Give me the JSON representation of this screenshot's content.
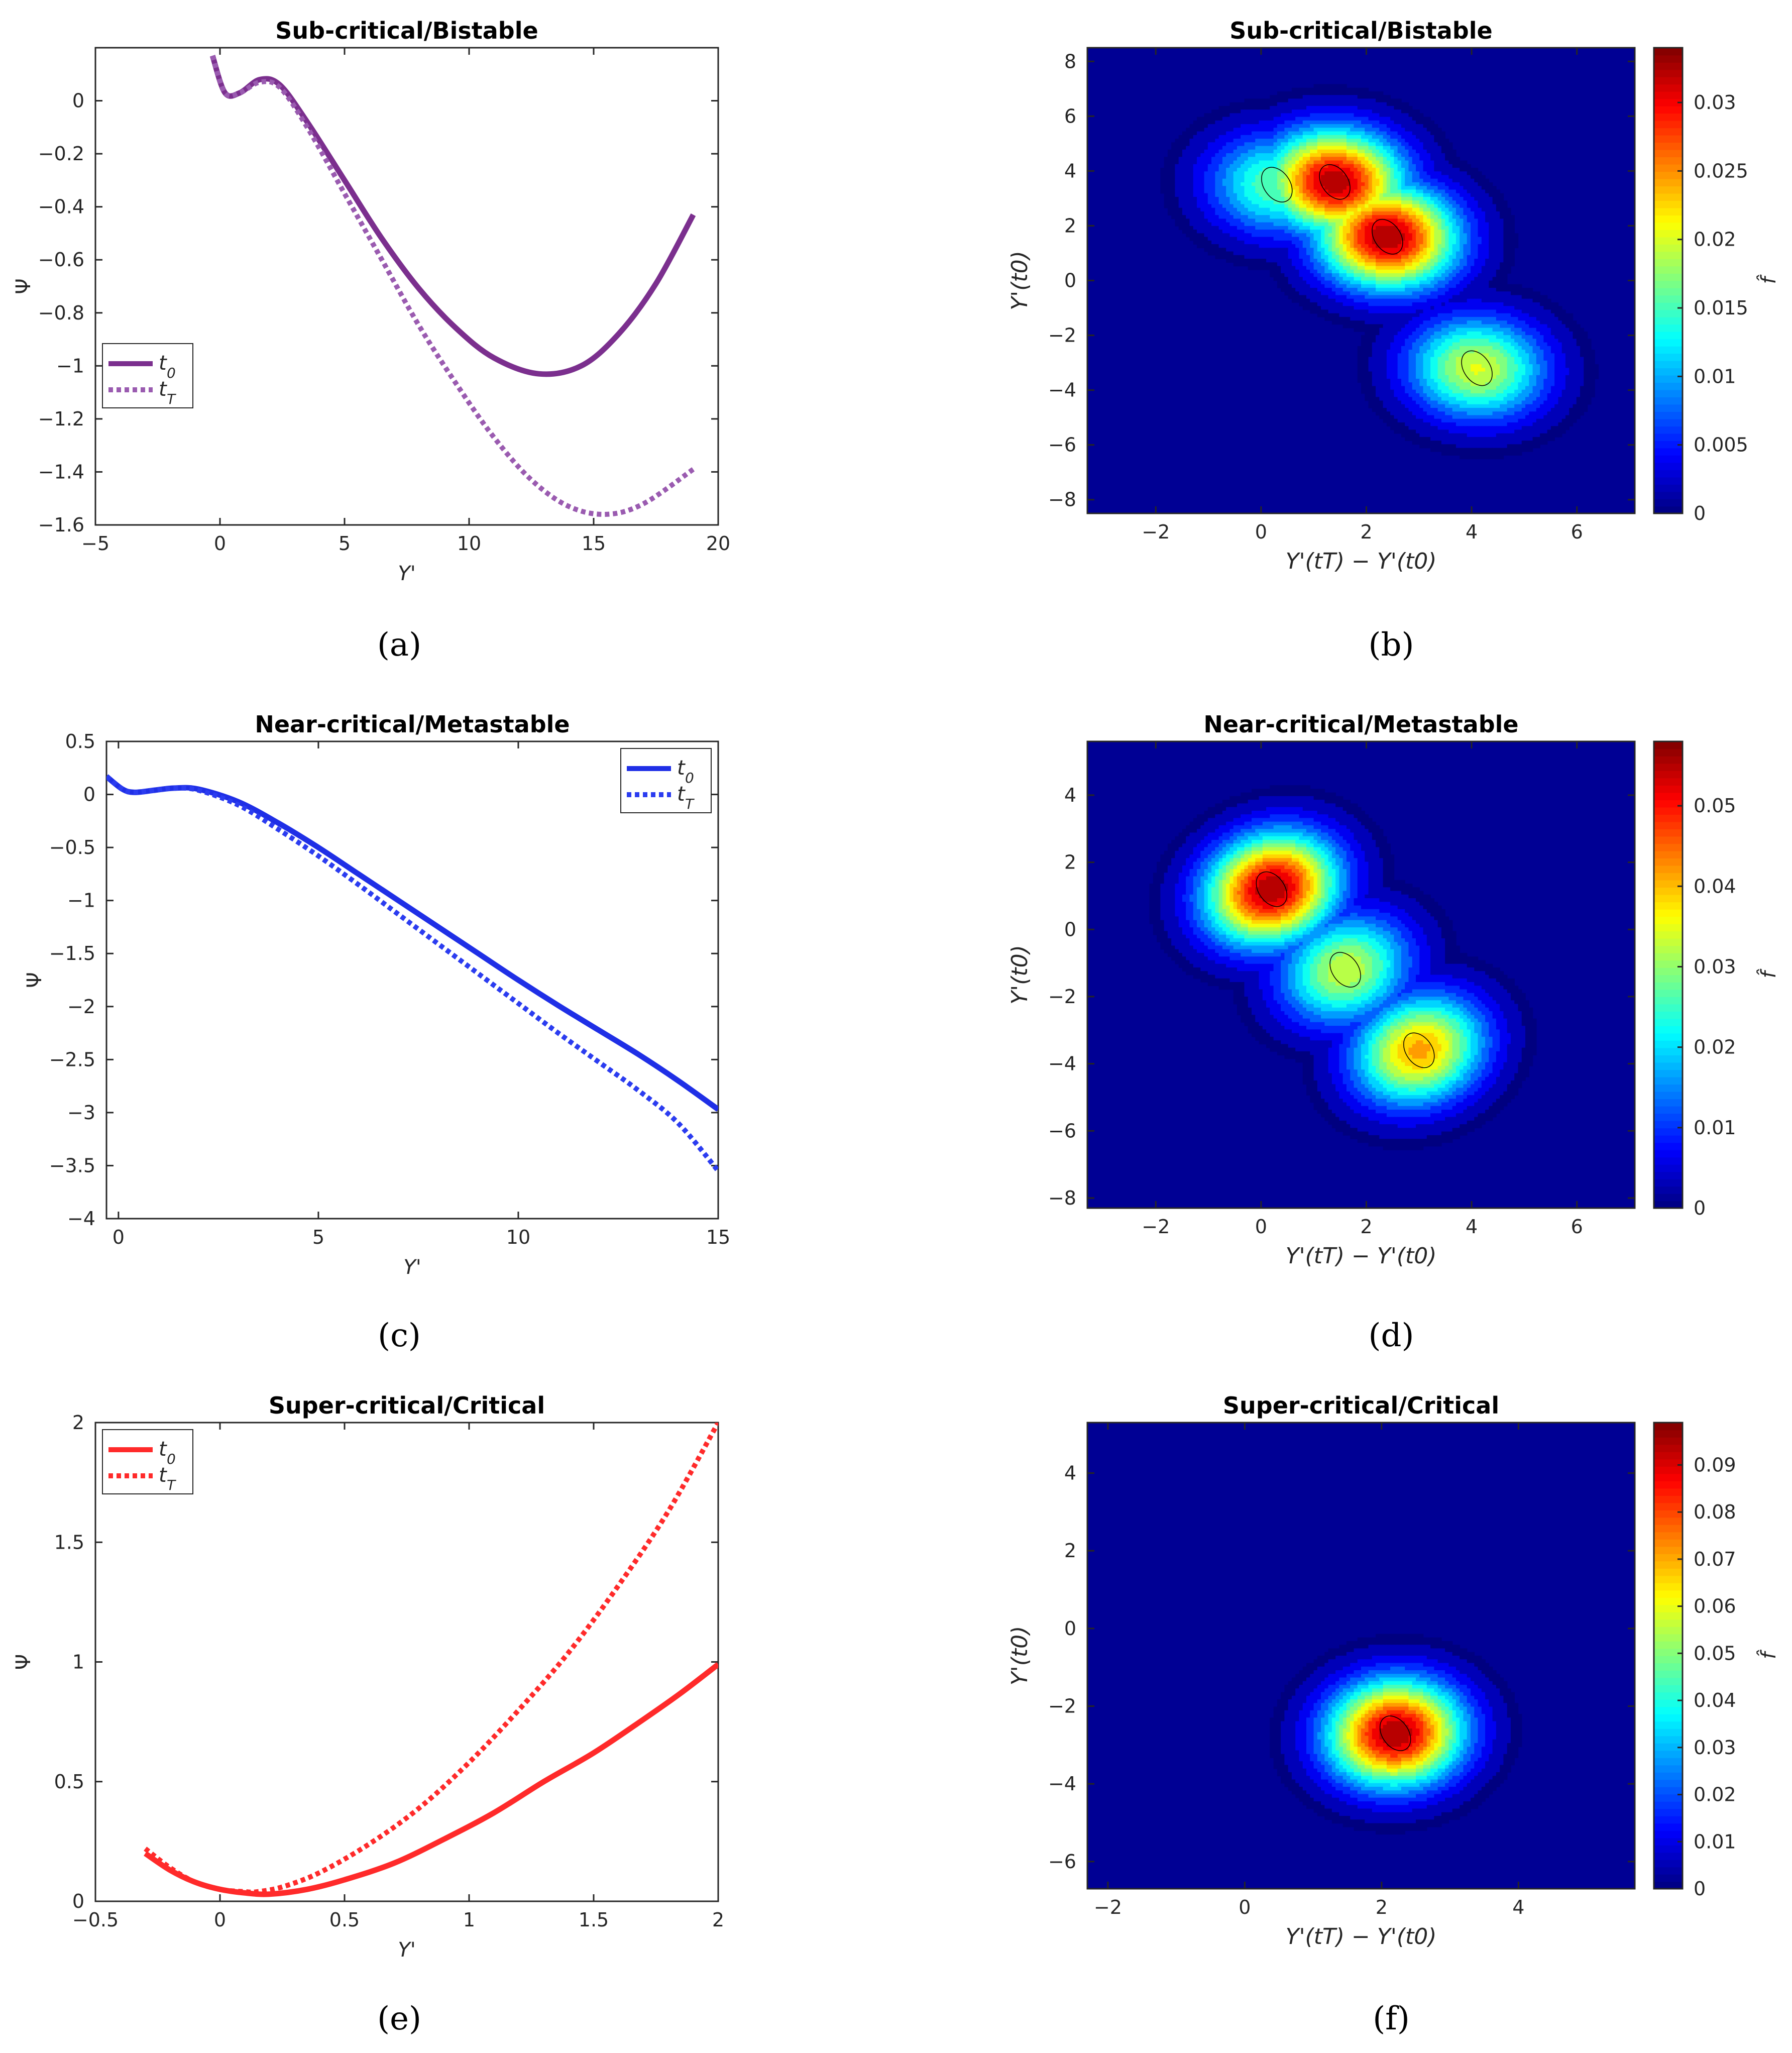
{
  "chart_data": [
    {
      "panel": "a",
      "type": "line",
      "title": "Sub-critical/Bistable",
      "xlabel": "Y'",
      "ylabel": "Ψ",
      "xlim": [
        -5,
        20
      ],
      "ylim": [
        -1.6,
        0.2
      ],
      "xticks": [
        -5,
        0,
        5,
        10,
        15,
        20
      ],
      "xtick_labels": [
        "−5",
        "0",
        "5",
        "10",
        "15",
        "20"
      ],
      "yticks": [
        0,
        -0.2,
        -0.4,
        -0.6,
        -0.8,
        -1,
        -1.2,
        -1.4,
        -1.6
      ],
      "ytick_labels": [
        "0",
        "−0.2",
        "−0.4",
        "−0.6",
        "−0.8",
        "−1",
        "−1.2",
        "−1.4",
        "−1.6"
      ],
      "legend": {
        "position": "middle-left",
        "entries": [
          {
            "base": "t",
            "sub": "0",
            "style": "solid"
          },
          {
            "base": "t",
            "sub": "T",
            "style": "dotted"
          }
        ]
      },
      "series": [
        {
          "name": "t0",
          "style": "solid",
          "color": "#7b2f8e",
          "x": [
            -0.3,
            0.2,
            0.8,
            1.6,
            2.4,
            3.5,
            5,
            6.5,
            8,
            9.5,
            11,
            12.8,
            14.5,
            16,
            17.5,
            19
          ],
          "y": [
            0.17,
            0.03,
            0.03,
            0.08,
            0.06,
            -0.08,
            -0.3,
            -0.52,
            -0.71,
            -0.86,
            -0.97,
            -1.03,
            -1.0,
            -0.88,
            -0.69,
            -0.43
          ]
        },
        {
          "name": "tT",
          "style": "dotted",
          "color": "#9a5bb0",
          "x": [
            -0.3,
            0.2,
            0.8,
            1.6,
            2.4,
            3.5,
            5,
            6.5,
            8,
            9.5,
            11,
            12.5,
            14,
            15.5,
            17,
            19
          ],
          "y": [
            0.17,
            0.03,
            0.03,
            0.07,
            0.05,
            -0.1,
            -0.35,
            -0.6,
            -0.85,
            -1.07,
            -1.27,
            -1.43,
            -1.53,
            -1.56,
            -1.52,
            -1.39
          ]
        }
      ]
    },
    {
      "panel": "b",
      "type": "heatmap",
      "title": "Sub-critical/Bistable",
      "xlabel": "Y'(tT) − Y'(t0)",
      "ylabel": "Y'(t0)",
      "colorbar_label": "f̂",
      "xlim": [
        -3.3,
        7.1
      ],
      "ylim": [
        -8.5,
        8.5
      ],
      "xticks": [
        -2,
        0,
        2,
        4,
        6
      ],
      "xtick_labels": [
        "−2",
        "0",
        "2",
        "4",
        "6"
      ],
      "yticks": [
        8,
        6,
        4,
        2,
        0,
        -2,
        -4,
        -6,
        -8
      ],
      "ytick_labels": [
        "8",
        "6",
        "4",
        "2",
        "0",
        "−2",
        "−4",
        "−6",
        "−8"
      ],
      "clim": [
        0,
        0.034
      ],
      "cticks": [
        0,
        0.005,
        0.01,
        0.015,
        0.02,
        0.025,
        0.03
      ],
      "ctick_labels": [
        "0",
        "0.005",
        "0.01",
        "0.015",
        "0.02",
        "0.025",
        "0.03"
      ],
      "peaks": [
        {
          "x": 1.4,
          "y": 3.6,
          "height": 0.0335
        },
        {
          "x": 2.4,
          "y": 1.6,
          "height": 0.034
        },
        {
          "x": 4.1,
          "y": -3.2,
          "height": 0.021
        },
        {
          "x": 0.3,
          "y": 3.5,
          "height": 0.017
        }
      ]
    },
    {
      "panel": "c",
      "type": "line",
      "title": "Near-critical/Metastable",
      "xlabel": "Y'",
      "ylabel": "Ψ",
      "xlim": [
        -0.3,
        15
      ],
      "ylim": [
        -4,
        0.5
      ],
      "xticks": [
        0,
        5,
        10,
        15
      ],
      "xtick_labels": [
        "0",
        "5",
        "10",
        "15"
      ],
      "yticks": [
        0.5,
        0,
        -0.5,
        -1,
        -1.5,
        -2,
        -2.5,
        -3,
        -3.5,
        -4
      ],
      "ytick_labels": [
        "0.5",
        "0",
        "−0.5",
        "−1",
        "−1.5",
        "−2",
        "−2.5",
        "−3",
        "−3.5",
        "−4"
      ],
      "legend": {
        "position": "top-right",
        "entries": [
          {
            "base": "t",
            "sub": "0",
            "style": "solid"
          },
          {
            "base": "t",
            "sub": "T",
            "style": "dotted"
          }
        ]
      },
      "series": [
        {
          "name": "t0",
          "style": "solid",
          "color": "#1f2fe6",
          "x": [
            -0.3,
            0.1,
            0.4,
            0.9,
            1.4,
            2,
            3,
            4,
            5,
            6,
            7,
            8,
            9,
            10,
            11,
            12,
            13,
            14,
            15
          ],
          "y": [
            0.17,
            0.05,
            0.02,
            0.04,
            0.06,
            0.05,
            -0.07,
            -0.27,
            -0.5,
            -0.75,
            -1.0,
            -1.25,
            -1.5,
            -1.75,
            -1.99,
            -2.22,
            -2.45,
            -2.7,
            -2.97
          ]
        },
        {
          "name": "tT",
          "style": "dotted",
          "color": "#2b3cf0",
          "x": [
            -0.3,
            0.1,
            0.4,
            0.9,
            1.4,
            2,
            3,
            4,
            5,
            6,
            7,
            8,
            9,
            10,
            11,
            12,
            13,
            14,
            15
          ],
          "y": [
            0.17,
            0.05,
            0.02,
            0.04,
            0.06,
            0.04,
            -0.1,
            -0.33,
            -0.58,
            -0.85,
            -1.13,
            -1.41,
            -1.69,
            -1.97,
            -2.25,
            -2.52,
            -2.79,
            -3.1,
            -3.55
          ]
        }
      ]
    },
    {
      "panel": "d",
      "type": "heatmap",
      "title": "Near-critical/Metastable",
      "xlabel": "Y'(tT) − Y'(t0)",
      "ylabel": "Y'(t0)",
      "colorbar_label": "f̂",
      "xlim": [
        -3.3,
        7.1
      ],
      "ylim": [
        -8.3,
        5.6
      ],
      "xticks": [
        -2,
        0,
        2,
        4,
        6
      ],
      "xtick_labels": [
        "−2",
        "0",
        "2",
        "4",
        "6"
      ],
      "yticks": [
        4,
        2,
        0,
        -2,
        -4,
        -6,
        -8
      ],
      "ytick_labels": [
        "4",
        "2",
        "0",
        "−2",
        "−4",
        "−6",
        "−8"
      ],
      "clim": [
        0,
        0.058
      ],
      "cticks": [
        0,
        0.01,
        0.02,
        0.03,
        0.04,
        0.05
      ],
      "ctick_labels": [
        "0",
        "0.01",
        "0.02",
        "0.03",
        "0.04",
        "0.05"
      ],
      "peaks": [
        {
          "x": 0.2,
          "y": 1.2,
          "height": 0.058
        },
        {
          "x": 1.6,
          "y": -1.2,
          "height": 0.035
        },
        {
          "x": 3.0,
          "y": -3.6,
          "height": 0.043
        }
      ]
    },
    {
      "panel": "e",
      "type": "line",
      "title": "Super-critical/Critical",
      "xlabel": "Y'",
      "ylabel": "Ψ",
      "xlim": [
        -0.5,
        2
      ],
      "ylim": [
        0,
        2
      ],
      "xticks": [
        -0.5,
        0,
        0.5,
        1,
        1.5,
        2
      ],
      "xtick_labels": [
        "−0.5",
        "0",
        "0.5",
        "1",
        "1.5",
        "2"
      ],
      "yticks": [
        2,
        1.5,
        1,
        0.5,
        0
      ],
      "ytick_labels": [
        "2",
        "1.5",
        "1",
        "0.5",
        "0"
      ],
      "legend": {
        "position": "top-left",
        "entries": [
          {
            "base": "t",
            "sub": "0",
            "style": "solid"
          },
          {
            "base": "t",
            "sub": "T",
            "style": "dotted"
          }
        ]
      },
      "series": [
        {
          "name": "t0",
          "style": "solid",
          "color": "#ff2a2a",
          "x": [
            -0.3,
            -0.2,
            -0.1,
            0,
            0.1,
            0.2,
            0.35,
            0.5,
            0.7,
            0.9,
            1.1,
            1.3,
            1.5,
            1.7,
            1.85,
            2
          ],
          "y": [
            0.2,
            0.13,
            0.08,
            0.05,
            0.035,
            0.03,
            0.05,
            0.09,
            0.16,
            0.26,
            0.37,
            0.5,
            0.62,
            0.76,
            0.87,
            0.99
          ]
        },
        {
          "name": "tT",
          "style": "dotted",
          "color": "#ff2a2a",
          "x": [
            -0.3,
            -0.2,
            -0.1,
            0,
            0.1,
            0.15,
            0.25,
            0.4,
            0.6,
            0.8,
            1.0,
            1.2,
            1.4,
            1.6,
            1.8,
            2
          ],
          "y": [
            0.22,
            0.14,
            0.08,
            0.05,
            0.04,
            0.04,
            0.06,
            0.12,
            0.24,
            0.39,
            0.58,
            0.8,
            1.04,
            1.32,
            1.63,
            2.0
          ]
        }
      ]
    },
    {
      "panel": "f",
      "type": "heatmap",
      "title": "Super-critical/Critical",
      "xlabel": "Y'(tT) − Y'(t0)",
      "ylabel": "Y'(t0)",
      "colorbar_label": "f̂",
      "xlim": [
        -2.3,
        5.7
      ],
      "ylim": [
        -6.7,
        5.3
      ],
      "xticks": [
        -2,
        0,
        2,
        4
      ],
      "xtick_labels": [
        "−2",
        "0",
        "2",
        "4"
      ],
      "yticks": [
        4,
        2,
        0,
        -2,
        -4,
        -6
      ],
      "ytick_labels": [
        "4",
        "2",
        "0",
        "−2",
        "−4",
        "−6"
      ],
      "clim": [
        0,
        0.099
      ],
      "cticks": [
        0,
        0.01,
        0.02,
        0.03,
        0.04,
        0.05,
        0.06,
        0.07,
        0.08,
        0.09
      ],
      "ctick_labels": [
        "0",
        "0.01",
        "0.02",
        "0.03",
        "0.04",
        "0.05",
        "0.06",
        "0.07",
        "0.08",
        "0.09"
      ],
      "peaks": [
        {
          "x": 2.2,
          "y": -2.7,
          "height": 0.099
        }
      ]
    }
  ],
  "captions": [
    "(a)",
    "(b)",
    "(c)",
    "(d)",
    "(e)",
    "(f)"
  ]
}
